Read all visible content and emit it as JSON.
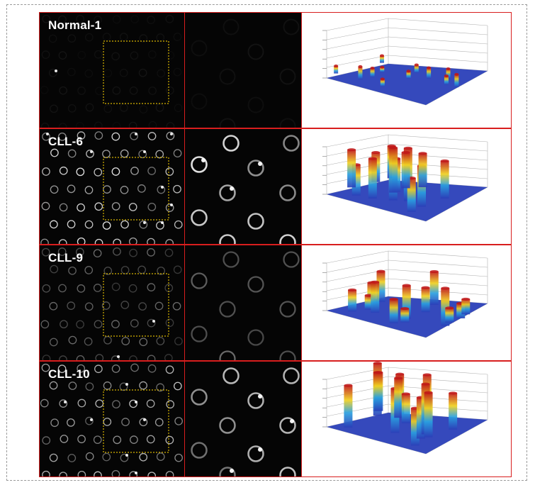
{
  "rows": [
    {
      "label": "Normal-1",
      "intensity": 0.18,
      "ring_color": "#5a5a5a",
      "surface": "low"
    },
    {
      "label": "CLL-6",
      "intensity": 1.0,
      "ring_color": "#e8e8e8",
      "surface": "high"
    },
    {
      "label": "CLL-9",
      "intensity": 0.6,
      "ring_color": "#b5b5b5",
      "surface": "medium"
    },
    {
      "label": "CLL-10",
      "intensity": 0.9,
      "ring_color": "#dcdcdc",
      "surface": "high"
    }
  ],
  "colors": {
    "panel_border": "#d81e1e",
    "roi_box": "#d7b400",
    "surface_base": "#2a3fb8",
    "peak_low": "#2aa0e0",
    "peak_mid": "#f0d020",
    "peak_high": "#c01818"
  }
}
